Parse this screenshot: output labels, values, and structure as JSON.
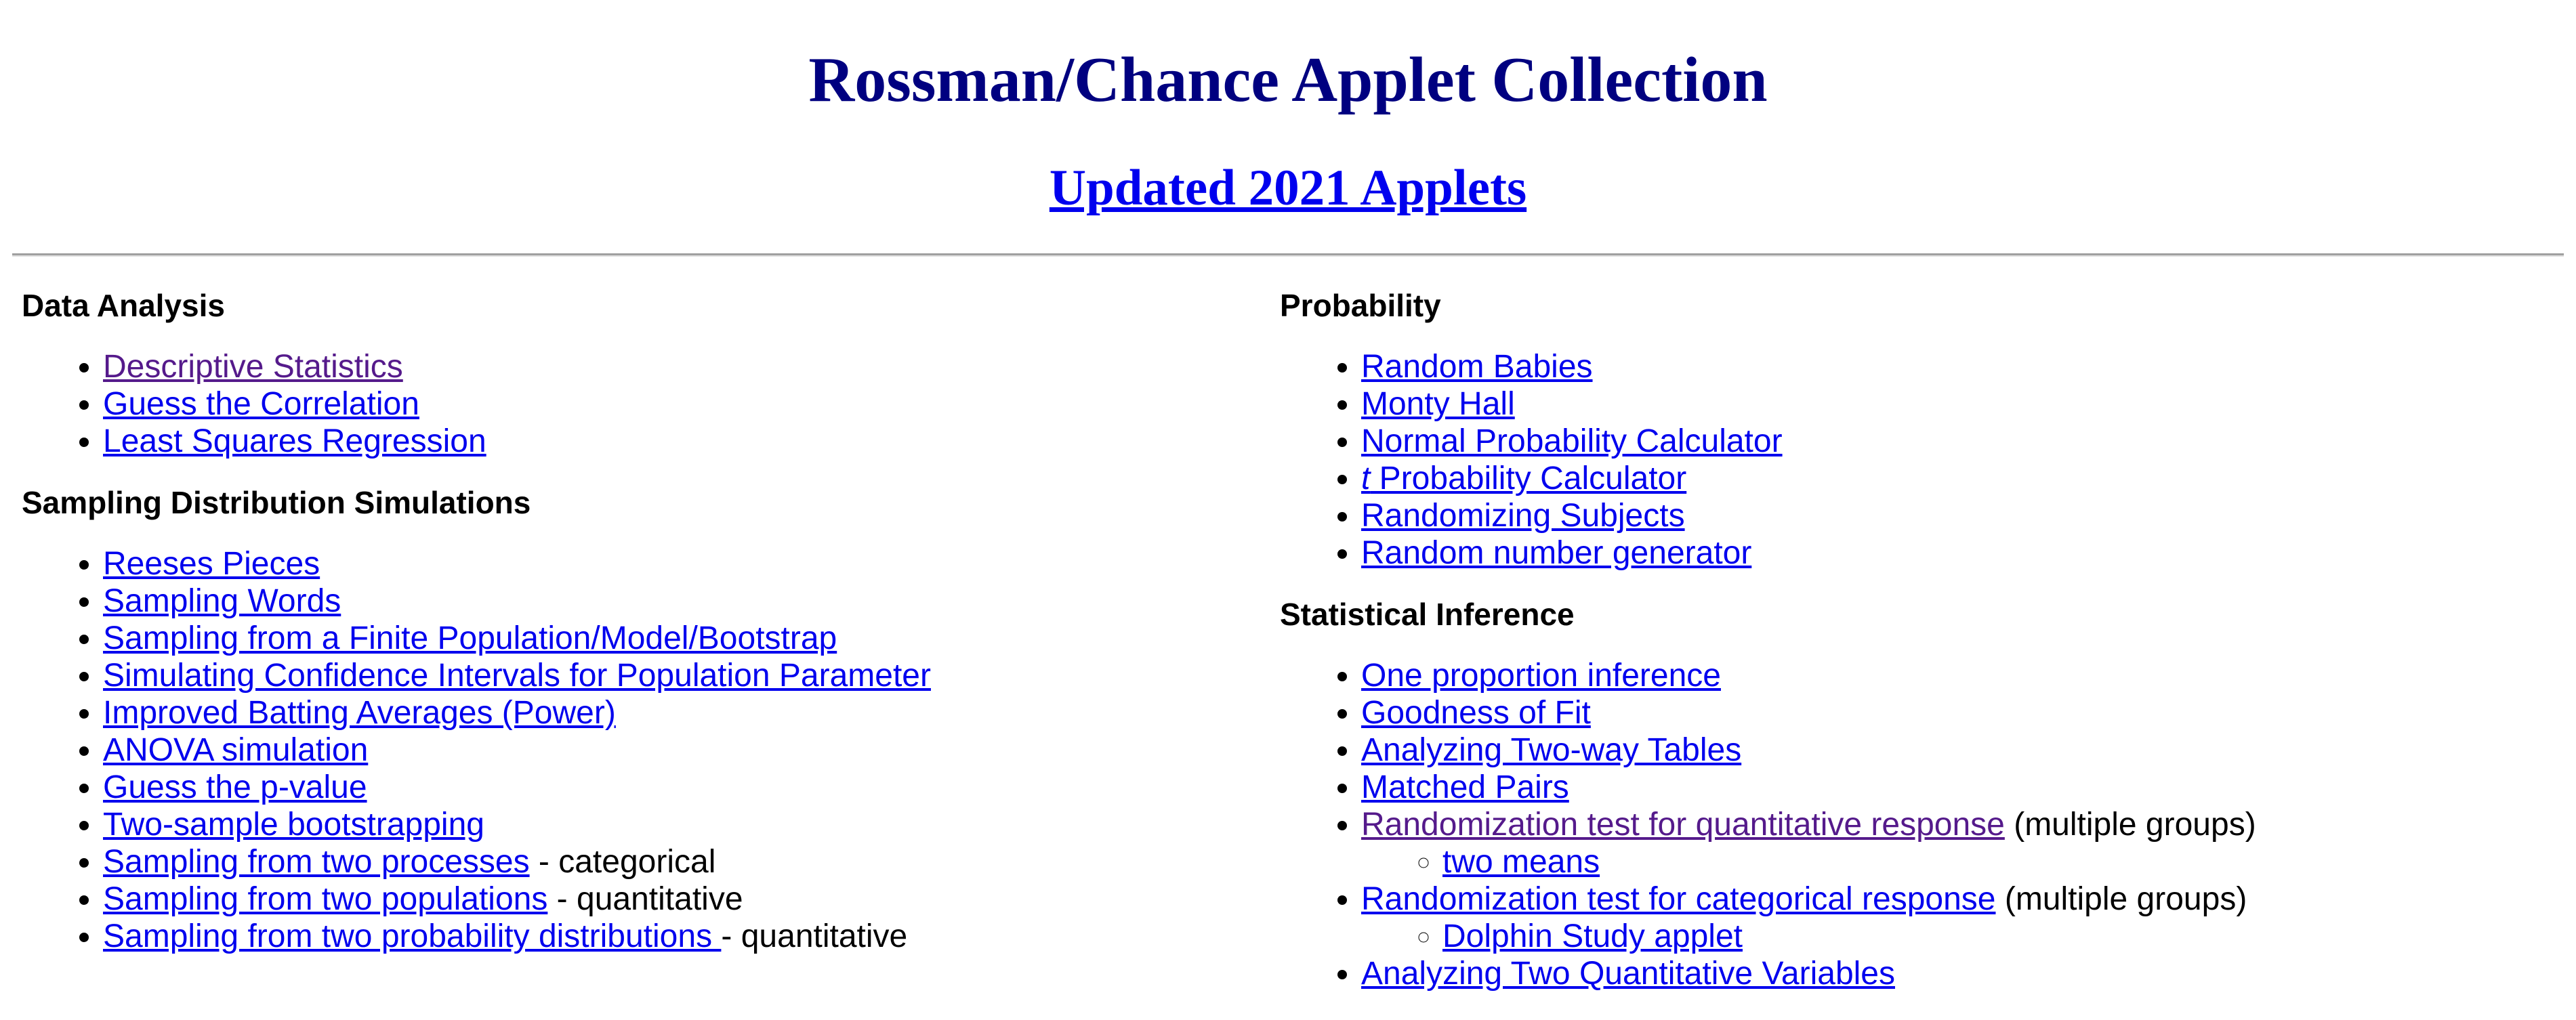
{
  "header": {
    "title": "Rossman/Chance Applet Collection",
    "updated_link": "Updated 2021 Applets"
  },
  "left": {
    "data_analysis": {
      "heading": "Data Analysis",
      "items": [
        "Descriptive Statistics",
        "Guess the Correlation",
        "Least Squares Regression"
      ]
    },
    "sampling": {
      "heading": "Sampling Distribution Simulations",
      "items": [
        "Reeses Pieces",
        "Sampling Words",
        "Sampling from a Finite Population/Model/Bootstrap",
        "Simulating Confidence Intervals for Population Parameter",
        "Improved Batting Averages (Power)",
        "ANOVA simulation",
        "Guess the p-value",
        "Two-sample bootstrapping",
        "Sampling from two processes",
        "Sampling from two populations",
        "Sampling from two probability distributions "
      ],
      "suffix_processes": " - categorical",
      "suffix_populations": " - quantitative",
      "suffix_distributions": " - quantitative"
    }
  },
  "right": {
    "probability": {
      "heading": "Probability",
      "items": [
        "Random Babies",
        "Monty Hall",
        "Normal Probability Calculator",
        "t",
        " Probability Calculator",
        "Randomizing Subjects",
        "Random number generator"
      ]
    },
    "inference": {
      "heading": "Statistical Inference",
      "items": [
        "One proportion inference",
        "Goodness of Fit",
        "Analyzing Two-way Tables",
        "Matched Pairs",
        "Randomization test for quantitative response",
        "two means",
        "Randomization test for categorical response",
        "Dolphin Study applet",
        "Analyzing Two Quantitative Variables"
      ],
      "suffix_multiple_groups": " (multiple groups)"
    }
  },
  "colors": {
    "title": "#000080",
    "link": "#0000ee",
    "visited": "#551a8b"
  },
  "icons": {
    "bullet": "disc-bullet-icon",
    "sub_bullet": "circle-bullet-icon"
  }
}
